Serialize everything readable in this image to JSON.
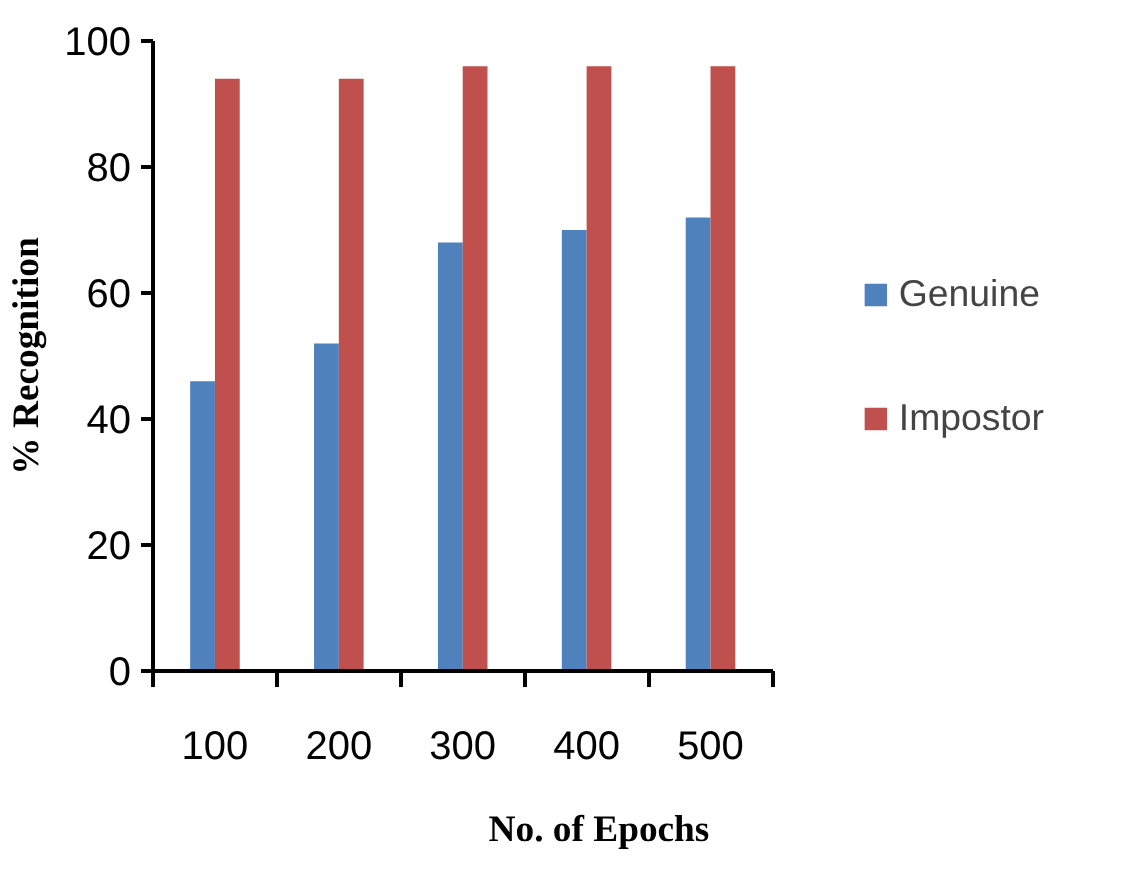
{
  "chart_data": {
    "type": "bar",
    "xlabel": "No. of Epochs",
    "ylabel": "% Recognition",
    "categories": [
      "100",
      "200",
      "300",
      "400",
      "500"
    ],
    "series": [
      {
        "name": "Genuine",
        "color": "#4f81bd",
        "values": [
          46,
          52,
          68,
          70,
          72
        ]
      },
      {
        "name": "Impostor",
        "color": "#c0504d",
        "values": [
          94,
          94,
          96,
          96,
          96
        ]
      }
    ],
    "ylim": [
      0,
      100
    ],
    "yticks": [
      0,
      20,
      40,
      60,
      80,
      100
    ],
    "grid": false,
    "legend": "right"
  }
}
